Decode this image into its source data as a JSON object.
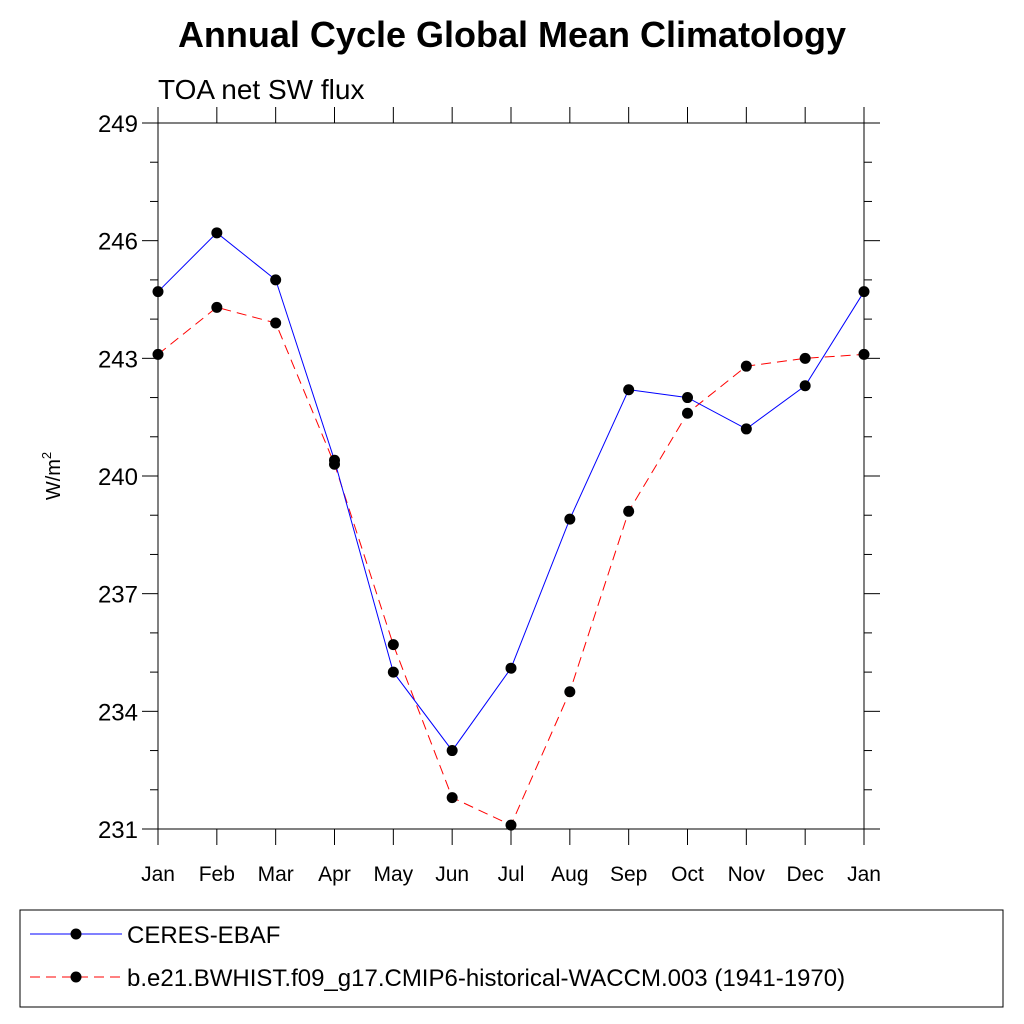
{
  "chart_data": {
    "type": "line",
    "title": "Annual Cycle Global Mean Climatology",
    "subtitle": "TOA net SW flux",
    "xlabel": "",
    "ylabel": "W/m",
    "ylabel_superscript": "2",
    "categories": [
      "Jan",
      "Feb",
      "Mar",
      "Apr",
      "May",
      "Jun",
      "Jul",
      "Aug",
      "Sep",
      "Oct",
      "Nov",
      "Dec",
      "Jan"
    ],
    "ylim": [
      231,
      249
    ],
    "yticks": [
      231,
      234,
      237,
      240,
      243,
      246,
      249
    ],
    "series": [
      {
        "name": "CERES-EBAF",
        "color": "#0000ff",
        "dash": "solid",
        "values": [
          244.7,
          246.2,
          245.0,
          240.4,
          235.0,
          233.0,
          235.1,
          238.9,
          242.2,
          242.0,
          241.2,
          242.3,
          244.7
        ]
      },
      {
        "name": "b.e21.BWHIST.f09_g17.CMIP6-historical-WACCM.003 (1941-1970)",
        "color": "#ff0000",
        "dash": "dashed",
        "values": [
          243.1,
          244.3,
          243.9,
          240.3,
          235.7,
          231.8,
          231.1,
          234.5,
          239.1,
          241.6,
          242.8,
          243.0,
          243.1
        ]
      }
    ]
  }
}
